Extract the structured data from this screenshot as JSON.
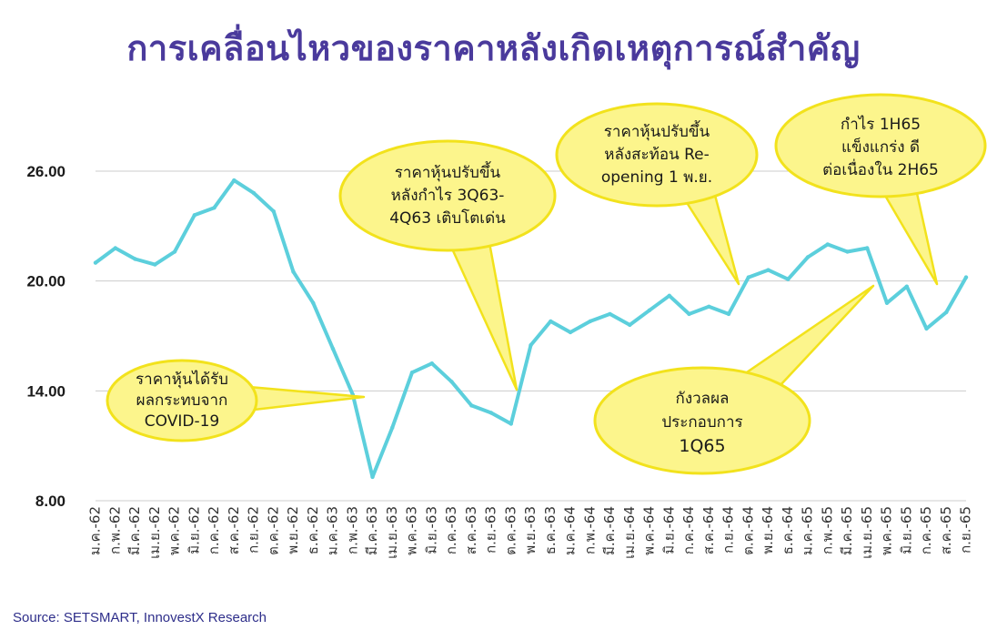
{
  "title": "การเคลื่อนไหวของราคาหลังเกิดเหตุการณ์สำคัญ",
  "source": "Source: SETSMART, InnovestX Research",
  "colors": {
    "line": "#5ccfdc",
    "bubble_fill": "#fcf58c",
    "bubble_stroke": "#f2e21c",
    "title": "#4a3a9c",
    "grid": "#cccccc"
  },
  "annotations": [
    {
      "lines": [
        "ราคาหุ้นได้รับ",
        "ผลกระทบจาก",
        "COVID-19"
      ]
    },
    {
      "lines": [
        "ราคาหุ้นปรับขึ้น",
        "หลังกำไร 3Q63-",
        "4Q63 เติบโตเด่น"
      ]
    },
    {
      "lines": [
        "ราคาหุ้นปรับขึ้น",
        "หลังสะท้อน Re-",
        "opening 1 พ.ย."
      ]
    },
    {
      "lines": [
        "กำไร 1H65",
        "แข็งแกร่ง ดี",
        "ต่อเนื่องใน 2H65"
      ]
    },
    {
      "lines": [
        "กังวลผล",
        "ประกอบการ",
        "1Q65"
      ]
    }
  ],
  "chart_data": {
    "type": "line",
    "title": "การเคลื่อนไหวของราคาหลังเกิดเหตุการณ์สำคัญ",
    "ylim": [
      8.0,
      26.0
    ],
    "yticks": [
      "8.00",
      "14.00",
      "20.00",
      "26.00"
    ],
    "grid": "horizontal",
    "x": [
      "ม.ค.-62",
      "ก.พ.-62",
      "มี.ค.-62",
      "เม.ย.-62",
      "พ.ค.-62",
      "มิ.ย.-62",
      "ก.ค.-62",
      "ส.ค.-62",
      "ก.ย.-62",
      "ต.ค.-62",
      "พ.ย.-62",
      "ธ.ค.-62",
      "ม.ค.-63",
      "ก.พ.-63",
      "มี.ค.-63",
      "เม.ย.-63",
      "พ.ค.-63",
      "มิ.ย.-63",
      "ก.ค.-63",
      "ส.ค.-63",
      "ก.ย.-63",
      "ต.ค.-63",
      "พ.ย.-63",
      "ธ.ค.-63",
      "ม.ค.-64",
      "ก.พ.-64",
      "มี.ค.-64",
      "เม.ย.-64",
      "พ.ค.-64",
      "มิ.ย.-64",
      "ก.ค.-64",
      "ส.ค.-64",
      "ก.ย.-64",
      "ต.ค.-64",
      "พ.ย.-64",
      "ธ.ค.-64",
      "ม.ค.-65",
      "ก.พ.-65",
      "มี.ค.-65",
      "เม.ย.-65",
      "พ.ค.-65",
      "มิ.ย.-65",
      "ก.ค.-65",
      "ส.ค.-65",
      "ก.ย.-65"
    ],
    "values": [
      21.0,
      21.8,
      21.2,
      20.9,
      21.6,
      23.6,
      24.0,
      25.5,
      24.8,
      23.8,
      20.5,
      18.8,
      16.3,
      13.8,
      9.3,
      12.0,
      15.0,
      15.5,
      14.5,
      13.2,
      12.8,
      12.2,
      16.5,
      17.8,
      17.2,
      17.8,
      18.2,
      17.6,
      18.4,
      19.2,
      18.2,
      18.6,
      18.2,
      20.2,
      20.6,
      20.1,
      21.3,
      22.0,
      21.6,
      21.8,
      18.8,
      19.7,
      17.4,
      18.3,
      20.2
    ]
  }
}
